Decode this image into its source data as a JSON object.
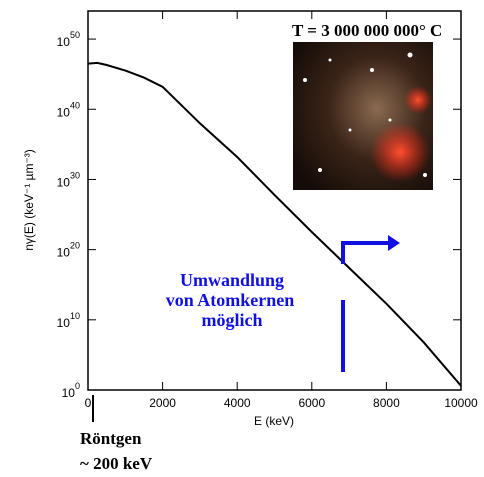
{
  "chart_data": {
    "type": "line",
    "x_label": "E (keV)",
    "y_label": "nγ(E) (keV⁻¹ µm⁻³)",
    "annotations": [
      "T = 3 000 000 000° C",
      "Umwandlung",
      "von  Atomkernen",
      "möglich",
      "Röntgen",
      "~ 200  keV"
    ],
    "x": [
      0,
      250,
      500,
      1000,
      1500,
      2000,
      3000,
      4000,
      5000,
      6000,
      7000,
      8000,
      9000,
      10000
    ],
    "series": [
      {
        "name": "nγ(E)",
        "color": "#000000",
        "values": [
          3.2e+46,
          4e+46,
          2e+46,
          3.2e+45,
          3.2e+44,
          1.6e+43,
          1e+38,
          1.6e+33,
          6.3e+27,
          3.2e+22,
          2.5e+17,
          2000000000000.0,
          6300000.0,
          4
        ]
      }
    ],
    "xlim": [
      0,
      10000
    ],
    "xticks": [
      0,
      2000,
      4000,
      6000,
      8000,
      10000
    ],
    "ylim": [
      1,
      1e+54
    ],
    "log_y": true,
    "yticks": [
      {
        "value": 1,
        "label": "10",
        "exponent": "0"
      },
      {
        "value": 10000000000.0,
        "label": "10",
        "exponent": "10"
      },
      {
        "value": 1e+20,
        "label": "10",
        "exponent": "20"
      },
      {
        "value": 1e+30,
        "label": "10",
        "exponent": "30"
      },
      {
        "value": 1e+40,
        "label": "10",
        "exponent": "40"
      },
      {
        "value": 1e+50,
        "label": "10",
        "exponent": "50"
      }
    ]
  }
}
